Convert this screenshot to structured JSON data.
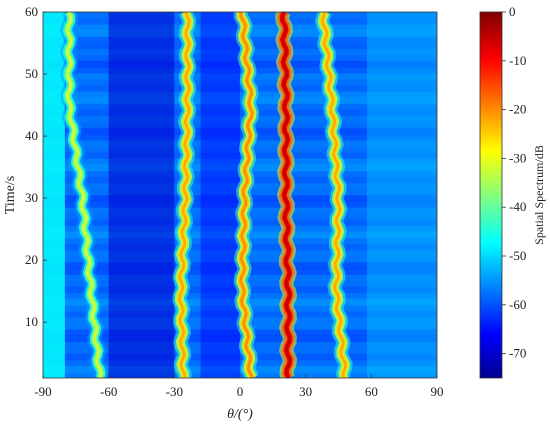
{
  "chart_data": {
    "type": "heatmap",
    "title": "",
    "xlabel": "θ/(°)",
    "ylabel": "Time/s",
    "xlim": [
      -90,
      90
    ],
    "ylim": [
      1,
      60
    ],
    "x_ticks": [
      -90,
      -60,
      -30,
      0,
      30,
      60,
      90
    ],
    "y_ticks": [
      10,
      20,
      30,
      40,
      50,
      60
    ],
    "colorbar": {
      "label": "Spatial Spectrum/dB",
      "range": [
        -75,
        0
      ],
      "ticks": [
        0,
        -10,
        -20,
        -30,
        -40,
        -50,
        -60,
        -70
      ],
      "colormap": [
        "#00008f",
        "#0000ff",
        "#00ffff",
        "#ffff00",
        "#ff0000",
        "#800000"
      ]
    },
    "background_level_db": -58,
    "tracks": [
      {
        "name": "",
        "peak_db": -32,
        "t": [
          1,
          15,
          30,
          45,
          60
        ],
        "theta": [
          -64,
          -68,
          -72,
          -78,
          -78
        ]
      },
      {
        "name": "",
        "peak_db": -22,
        "t": [
          1,
          15,
          30,
          45,
          60
        ],
        "theta": [
          -26,
          -27,
          -25,
          -24,
          -24
        ]
      },
      {
        "name": "",
        "peak_db": -20,
        "t": [
          1,
          15,
          30,
          45,
          60
        ],
        "theta": [
          5,
          1,
          2,
          5,
          1
        ]
      },
      {
        "name": "",
        "peak_db": -5,
        "t": [
          1,
          15,
          30,
          45,
          60
        ],
        "theta": [
          22,
          22,
          21,
          21,
          20
        ]
      },
      {
        "name": "",
        "peak_db": -22,
        "t": [
          1,
          15,
          30,
          45,
          60
        ],
        "theta": [
          48,
          44,
          45,
          42,
          38
        ]
      }
    ]
  }
}
